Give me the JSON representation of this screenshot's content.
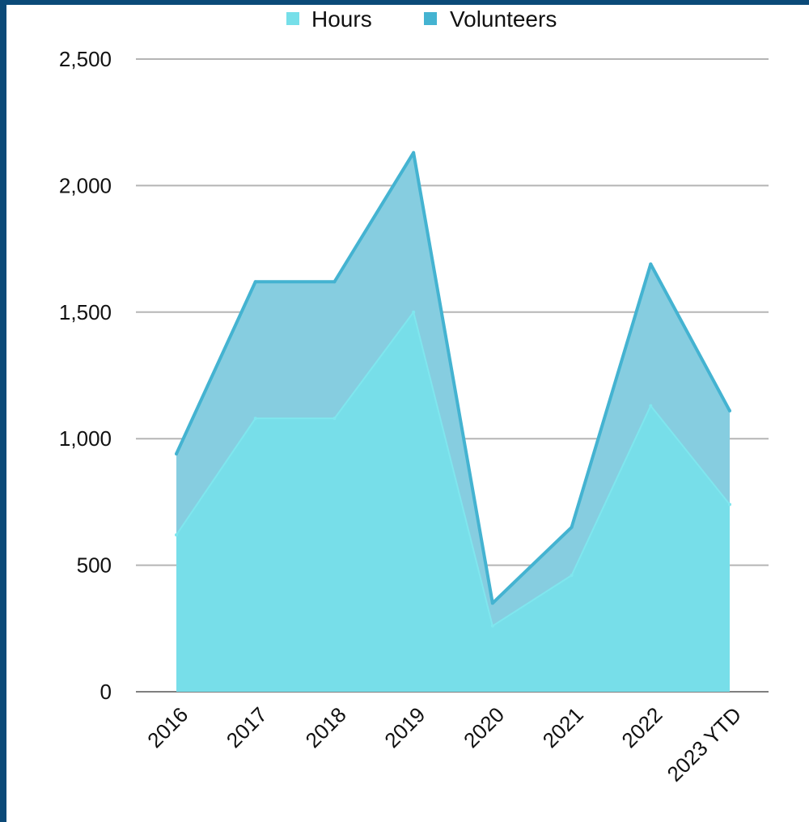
{
  "chart_data": {
    "type": "area",
    "title": "",
    "xlabel": "",
    "ylabel": "",
    "categories": [
      "2016",
      "2017",
      "2018",
      "2019",
      "2020",
      "2021",
      "2022",
      "2023 YTD"
    ],
    "series": [
      {
        "name": "Hours",
        "values": [
          620,
          1080,
          1080,
          1500,
          260,
          460,
          1130,
          740
        ],
        "color": "#76dfe9"
      },
      {
        "name": "Volunteers",
        "values": [
          940,
          1620,
          1620,
          2130,
          350,
          650,
          1690,
          1110
        ],
        "color": "#44b3d1"
      }
    ],
    "ylim": [
      0,
      2500
    ],
    "yticks": [
      0,
      500,
      1000,
      1500,
      2000,
      2500
    ],
    "ytick_labels": [
      "0",
      "500",
      "1,000",
      "1,500",
      "2,000",
      "2,500"
    ],
    "grid": true,
    "legend_position": "top-center"
  }
}
